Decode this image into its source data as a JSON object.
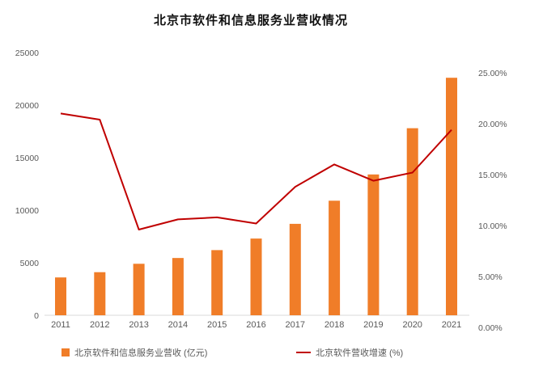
{
  "title": "北京市软件和信息服务业营收情况",
  "colors": {
    "bar": "#F07D28",
    "line": "#C00000",
    "axis_text": "#595959",
    "baseline": "#d9d9d9",
    "title": "#111111"
  },
  "chart_data": {
    "type": "combo",
    "title": "北京市软件和信息服务业营收情况",
    "categories": [
      "2011",
      "2012",
      "2013",
      "2014",
      "2015",
      "2016",
      "2017",
      "2018",
      "2019",
      "2020",
      "2021"
    ],
    "series": [
      {
        "name": "北京软件和信息服务业营收",
        "unit": "(亿元)",
        "type": "bar",
        "axis": "left",
        "values": [
          3600,
          4100,
          4900,
          5450,
          6200,
          7300,
          8700,
          10900,
          13400,
          17800,
          22600
        ]
      },
      {
        "name": "北京软件营收增速",
        "unit": "(%)",
        "type": "line",
        "axis": "right",
        "values": [
          21.0,
          20.4,
          9.6,
          10.6,
          10.8,
          10.2,
          13.8,
          16.0,
          14.4,
          15.2,
          19.4
        ]
      }
    ],
    "left_axis": {
      "min": 0,
      "max": 25000,
      "step": 5000,
      "tick_labels": [
        "0",
        "5000",
        "10000",
        "15000",
        "20000",
        "25000"
      ]
    },
    "right_axis": {
      "min": 0,
      "max": 25,
      "step": 5,
      "tick_labels": [
        "0.00%",
        "5.00%",
        "10.00%",
        "15.00%",
        "20.00%",
        "25.00%"
      ]
    },
    "grid": false,
    "legend_position": "bottom",
    "legend": [
      {
        "label": "北京软件和信息服务业营收 (亿元)",
        "marker": "square"
      },
      {
        "label": "北京软件营收增速 (%)",
        "marker": "line"
      }
    ]
  }
}
